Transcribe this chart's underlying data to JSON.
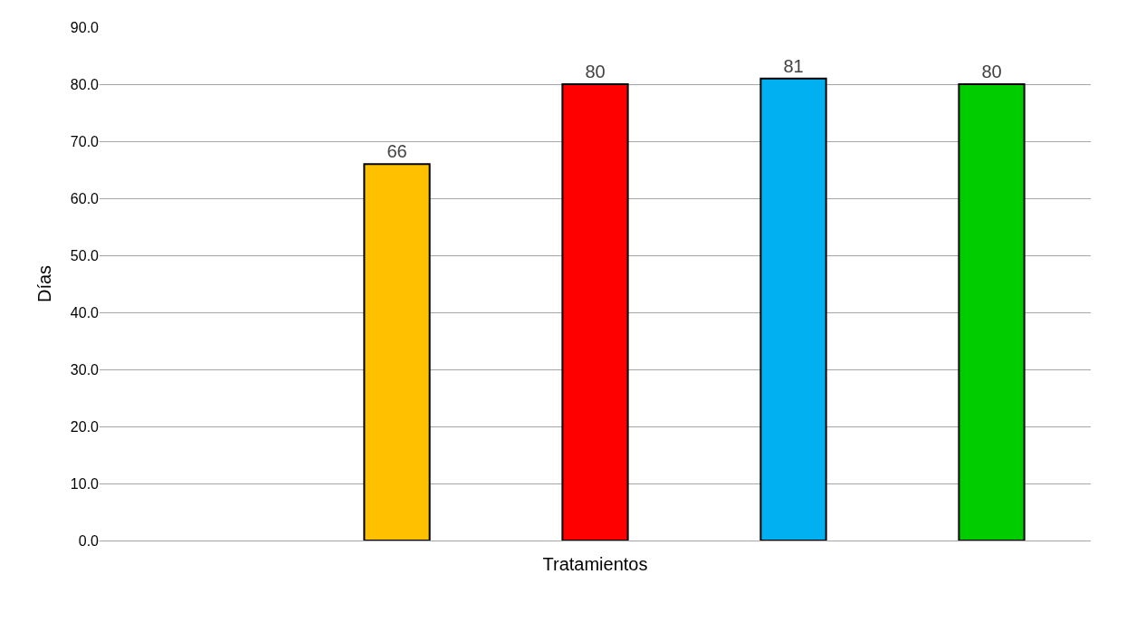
{
  "chart_data": {
    "type": "bar",
    "xlabel": "Tratamientos",
    "ylabel": "Días",
    "categories": [
      null,
      null,
      null,
      null,
      null
    ],
    "values": [
      null,
      66,
      80,
      81,
      80
    ],
    "colors": [
      null,
      "#ffc000",
      "#ff0000",
      "#00b0f0",
      "#00cc00"
    ],
    "data_labels": true,
    "ylim": [
      0,
      90
    ],
    "yticks": [
      {
        "value": 0,
        "label": "0.0"
      },
      {
        "value": 10,
        "label": "10.0"
      },
      {
        "value": 20,
        "label": "20.0"
      },
      {
        "value": 30,
        "label": "30.0"
      },
      {
        "value": 40,
        "label": "40.0"
      },
      {
        "value": 50,
        "label": "50.0"
      },
      {
        "value": 60,
        "label": "60.0"
      },
      {
        "value": 70,
        "label": "70.0"
      },
      {
        "value": 80,
        "label": "80.0"
      },
      {
        "value": 90,
        "label": "90.0"
      }
    ],
    "grid": "y"
  }
}
